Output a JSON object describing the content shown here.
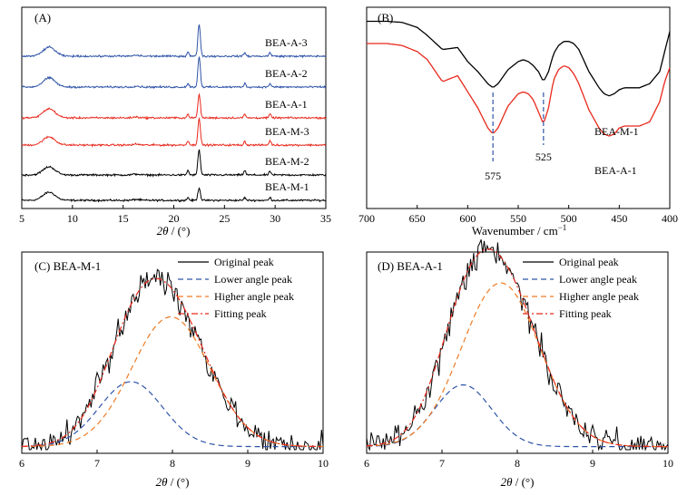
{
  "chart_data": [
    {
      "panel": "(A)",
      "type": "line",
      "xlabel_var": "2θ",
      "xlabel_unit": " / (°)",
      "xlim": [
        5,
        35
      ],
      "xticks": [
        "5",
        "10",
        "15",
        "20",
        "25",
        "30",
        "35"
      ],
      "major_peaks_2theta": [
        7.7,
        21.4,
        22.5,
        27.0,
        29.5
      ],
      "grid": false,
      "series": [
        {
          "name": "BEA-M-1",
          "color": "#000000"
        },
        {
          "name": "BEA-M-2",
          "color": "#000000"
        },
        {
          "name": "BEA-M-3",
          "color": "#e8291c"
        },
        {
          "name": "BEA-A-1",
          "color": "#e8291c"
        },
        {
          "name": "BEA-A-2",
          "color": "#2f54a8"
        },
        {
          "name": "BEA-A-3",
          "color": "#2f54a8"
        }
      ]
    },
    {
      "panel": "(B)",
      "type": "line",
      "xlabel": "Wavenumber / cm",
      "xlabel_sup": "−1",
      "xlim": [
        700,
        400
      ],
      "xticks": [
        "700",
        "650",
        "600",
        "550",
        "500",
        "450",
        "400"
      ],
      "grid": false,
      "series": [
        {
          "name": "BEA-M-1",
          "color": "#000000",
          "x": [
            700,
            680,
            665,
            650,
            640,
            625,
            610,
            600,
            590,
            580,
            575,
            570,
            560,
            550,
            545,
            540,
            535,
            530,
            525,
            520,
            515,
            510,
            505,
            500,
            495,
            490,
            480,
            470,
            465,
            460,
            455,
            450,
            445,
            440,
            430,
            420,
            410,
            405,
            400
          ],
          "y": [
            0.93,
            0.93,
            0.925,
            0.9,
            0.86,
            0.79,
            0.8,
            0.73,
            0.68,
            0.62,
            0.6,
            0.62,
            0.69,
            0.73,
            0.74,
            0.73,
            0.71,
            0.68,
            0.63,
            0.68,
            0.77,
            0.81,
            0.83,
            0.83,
            0.82,
            0.79,
            0.68,
            0.6,
            0.57,
            0.56,
            0.57,
            0.59,
            0.6,
            0.6,
            0.6,
            0.62,
            0.68,
            0.78,
            0.88
          ]
        },
        {
          "name": "BEA-A-1",
          "color": "#e8291c",
          "x": [
            700,
            680,
            665,
            650,
            640,
            625,
            610,
            600,
            590,
            580,
            575,
            570,
            560,
            550,
            545,
            540,
            535,
            530,
            525,
            520,
            515,
            510,
            505,
            500,
            495,
            490,
            480,
            470,
            465,
            460,
            455,
            450,
            445,
            440,
            430,
            420,
            410,
            405,
            400
          ],
          "y": [
            0.82,
            0.82,
            0.81,
            0.78,
            0.74,
            0.63,
            0.66,
            0.58,
            0.5,
            0.4,
            0.37,
            0.4,
            0.51,
            0.57,
            0.58,
            0.57,
            0.54,
            0.48,
            0.42,
            0.5,
            0.64,
            0.69,
            0.71,
            0.7,
            0.67,
            0.62,
            0.49,
            0.4,
            0.37,
            0.36,
            0.37,
            0.4,
            0.41,
            0.41,
            0.41,
            0.43,
            0.53,
            0.63,
            0.7
          ]
        }
      ],
      "annotations": [
        "575",
        "525"
      ],
      "annotation_x": [
        575,
        525
      ]
    },
    {
      "panel": "(C)",
      "sample": "BEA-M-1",
      "type": "line",
      "xlabel_var": "2θ",
      "xlabel_unit": " / (°)",
      "xlim": [
        6,
        10
      ],
      "xticks": [
        "6",
        "7",
        "8",
        "9",
        "10"
      ],
      "legend_position": "top-right",
      "legend": [
        "Original peak",
        "Lower angle peak",
        "Higher angle peak",
        "Fitting peak"
      ],
      "components": {
        "lower": {
          "center": 7.45,
          "height": 0.42,
          "sigma": 0.42
        },
        "higher": {
          "center": 7.98,
          "height": 0.84,
          "sigma": 0.52
        }
      },
      "colors": {
        "original": "#000000",
        "lower": "#2f54a8",
        "higher": "#f07b24",
        "fitting": "#e8291c"
      }
    },
    {
      "panel": "(D)",
      "sample": "BEA-A-1",
      "type": "line",
      "xlabel_var": "2θ",
      "xlabel_unit": " / (°)",
      "xlim": [
        6,
        10
      ],
      "xticks": [
        "6",
        "7",
        "8",
        "9",
        "10"
      ],
      "legend_position": "top-right",
      "legend": [
        "Original peak",
        "Lower angle peak",
        "Higher angle peak",
        "Fitting peak"
      ],
      "components": {
        "lower": {
          "center": 7.28,
          "height": 0.4,
          "sigma": 0.38
        },
        "higher": {
          "center": 7.78,
          "height": 1.06,
          "sigma": 0.52
        }
      },
      "colors": {
        "original": "#000000",
        "lower": "#2f54a8",
        "higher": "#f07b24",
        "fitting": "#e8291c"
      }
    }
  ]
}
